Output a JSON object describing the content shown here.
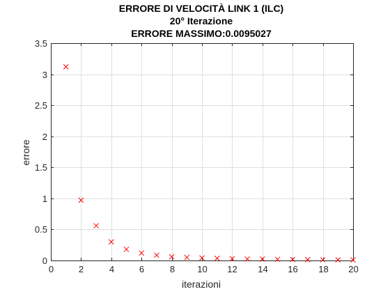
{
  "chart_data": {
    "type": "scatter",
    "title": [
      "ERRORE DI VELOCITÀ LINK 1 (ILC)",
      "20° Iterazione",
      "ERRORE MASSIMO:0.0095027"
    ],
    "xlabel": "iterazioni",
    "ylabel": "errore",
    "xlim": [
      0,
      20
    ],
    "ylim": [
      0,
      3.5
    ],
    "xticks": [
      0,
      2,
      4,
      6,
      8,
      10,
      12,
      14,
      16,
      18,
      20
    ],
    "yticks": [
      0,
      0.5,
      1,
      1.5,
      2,
      2.5,
      3,
      3.5
    ],
    "xtick_labels": [
      "0",
      "2",
      "4",
      "6",
      "8",
      "10",
      "12",
      "14",
      "16",
      "18",
      "20"
    ],
    "ytick_labels": [
      "0",
      "0.5",
      "1",
      "1.5",
      "2",
      "2.5",
      "3",
      "3.5"
    ],
    "grid": true,
    "marker": "x",
    "marker_color": "#ff0000",
    "series": [
      {
        "x": [
          1,
          2,
          3,
          4,
          5,
          6,
          7,
          8,
          9,
          10,
          11,
          12,
          13,
          14,
          15,
          16,
          17,
          18,
          19,
          20
        ],
        "y": [
          3.12,
          0.97,
          0.56,
          0.3,
          0.18,
          0.12,
          0.085,
          0.06,
          0.05,
          0.042,
          0.035,
          0.03,
          0.026,
          0.022,
          0.019,
          0.016,
          0.014,
          0.012,
          0.011,
          0.0095027
        ]
      }
    ]
  }
}
